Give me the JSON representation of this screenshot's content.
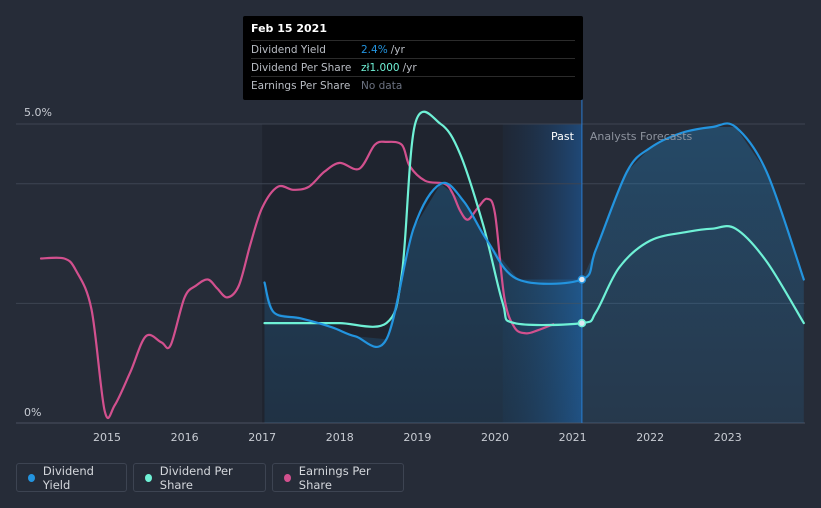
{
  "tooltip": {
    "date": "Feb 15 2021",
    "rows": [
      {
        "label": "Dividend Yield",
        "value": "2.4%",
        "unit": "/yr",
        "color": "#2394df"
      },
      {
        "label": "Dividend Per Share",
        "value": "zł1.000",
        "unit": "/yr",
        "color": "#6ff1d6"
      },
      {
        "label": "Earnings Per Share",
        "value": "No data",
        "unit": "",
        "color": "#6b7180"
      }
    ]
  },
  "legend": [
    {
      "label": "Dividend Yield",
      "color": "#2394df"
    },
    {
      "label": "Dividend Per Share",
      "color": "#6ff1d6"
    },
    {
      "label": "Earnings Per Share",
      "color": "#d2508e"
    }
  ],
  "chart_data": {
    "type": "line",
    "x_tick_labels": [
      "2015",
      "2016",
      "2017",
      "2018",
      "2019",
      "2020",
      "2021",
      "2022",
      "2023"
    ],
    "y_tick_labels": [
      "5.0%",
      "0%"
    ],
    "ylim": [
      0,
      5.0
    ],
    "divider_labels": {
      "past": "Past",
      "forecast": "Analysts Forecasts"
    },
    "divider_date": 2021.12,
    "series": [
      {
        "name": "Dividend Yield",
        "color": "#2394df",
        "unit": "%",
        "points": [
          [
            2017.03,
            2.35
          ],
          [
            2017.15,
            1.85
          ],
          [
            2017.5,
            1.75
          ],
          [
            2017.9,
            1.6
          ],
          [
            2018.2,
            1.45
          ],
          [
            2018.6,
            1.4
          ],
          [
            2018.95,
            3.25
          ],
          [
            2019.3,
            4.0
          ],
          [
            2019.6,
            3.7
          ],
          [
            2019.9,
            3.05
          ],
          [
            2020.3,
            2.4
          ],
          [
            2021.12,
            2.4
          ],
          [
            2021.3,
            2.9
          ],
          [
            2021.7,
            4.2
          ],
          [
            2022.0,
            4.6
          ],
          [
            2022.4,
            4.85
          ],
          [
            2022.8,
            4.95
          ],
          [
            2023.1,
            4.95
          ],
          [
            2023.5,
            4.2
          ],
          [
            2023.98,
            2.4
          ]
        ]
      },
      {
        "name": "Dividend Per Share",
        "color": "#6ff1d6",
        "unit": "zł",
        "points": [
          [
            2017.03,
            1.67
          ],
          [
            2017.5,
            1.67
          ],
          [
            2018.0,
            1.67
          ],
          [
            2018.6,
            1.67
          ],
          [
            2018.8,
            2.5
          ],
          [
            2018.97,
            5.0
          ],
          [
            2019.3,
            5.0
          ],
          [
            2019.55,
            4.5
          ],
          [
            2019.85,
            3.3
          ],
          [
            2020.1,
            2.0
          ],
          [
            2020.25,
            1.67
          ],
          [
            2021.12,
            1.67
          ],
          [
            2021.3,
            1.85
          ],
          [
            2021.6,
            2.6
          ],
          [
            2022.0,
            3.05
          ],
          [
            2022.5,
            3.2
          ],
          [
            2022.8,
            3.25
          ],
          [
            2023.1,
            3.25
          ],
          [
            2023.5,
            2.7
          ],
          [
            2023.98,
            1.67
          ]
        ]
      },
      {
        "name": "Earnings Per Share",
        "color": "#d2508e",
        "unit": "zł",
        "points": [
          [
            2014.15,
            2.75
          ],
          [
            2014.45,
            2.75
          ],
          [
            2014.6,
            2.55
          ],
          [
            2014.8,
            1.9
          ],
          [
            2014.97,
            0.2
          ],
          [
            2015.1,
            0.3
          ],
          [
            2015.3,
            0.85
          ],
          [
            2015.5,
            1.45
          ],
          [
            2015.7,
            1.35
          ],
          [
            2015.82,
            1.3
          ],
          [
            2016.0,
            2.1
          ],
          [
            2016.15,
            2.3
          ],
          [
            2016.3,
            2.4
          ],
          [
            2016.42,
            2.25
          ],
          [
            2016.55,
            2.1
          ],
          [
            2016.7,
            2.3
          ],
          [
            2016.85,
            3.0
          ],
          [
            2017.0,
            3.6
          ],
          [
            2017.2,
            3.95
          ],
          [
            2017.4,
            3.9
          ],
          [
            2017.6,
            3.95
          ],
          [
            2017.8,
            4.2
          ],
          [
            2018.0,
            4.35
          ],
          [
            2018.25,
            4.25
          ],
          [
            2018.45,
            4.65
          ],
          [
            2018.6,
            4.7
          ],
          [
            2018.8,
            4.65
          ],
          [
            2018.9,
            4.3
          ],
          [
            2019.1,
            4.05
          ],
          [
            2019.35,
            4.0
          ],
          [
            2019.45,
            3.85
          ],
          [
            2019.55,
            3.55
          ],
          [
            2019.65,
            3.4
          ],
          [
            2019.78,
            3.6
          ],
          [
            2019.9,
            3.75
          ],
          [
            2020.0,
            3.5
          ],
          [
            2020.12,
            2.1
          ],
          [
            2020.25,
            1.6
          ],
          [
            2020.4,
            1.5
          ],
          [
            2020.55,
            1.55
          ],
          [
            2020.75,
            1.65
          ]
        ]
      }
    ]
  }
}
